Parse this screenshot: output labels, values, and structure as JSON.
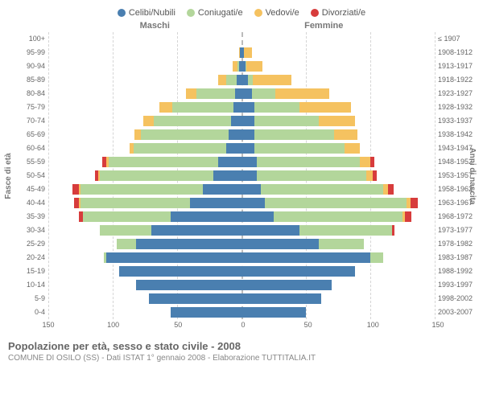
{
  "legend": [
    {
      "label": "Celibi/Nubili",
      "color": "#4a7fb0"
    },
    {
      "label": "Coniugati/e",
      "color": "#b3d69b"
    },
    {
      "label": "Vedovi/e",
      "color": "#f5c260"
    },
    {
      "label": "Divorziati/e",
      "color": "#d73c3c"
    }
  ],
  "side_titles": {
    "left": "Maschi",
    "right": "Femmine"
  },
  "y_left_label": "Fasce di età",
  "y_right_label": "Anni di nascita",
  "x_ticks": [
    150,
    100,
    50,
    0,
    50,
    100,
    150
  ],
  "x_max": 150,
  "footer_title": "Popolazione per età, sesso e stato civile - 2008",
  "footer_sub": "COMUNE DI OSILO (SS) - Dati ISTAT 1° gennaio 2008 - Elaborazione TUTTITALIA.IT",
  "colors": {
    "single": "#4a7fb0",
    "married": "#b3d69b",
    "widowed": "#f5c260",
    "divorced": "#d73c3c",
    "grid": "#d5d5d5",
    "center": "#bbb"
  },
  "rows": [
    {
      "age": "100+",
      "birth": "≤ 1907",
      "m": {
        "s": 0,
        "c": 0,
        "w": 0,
        "d": 0
      },
      "f": {
        "s": 0,
        "c": 0,
        "w": 0,
        "d": 0
      }
    },
    {
      "age": "95-99",
      "birth": "1908-1912",
      "m": {
        "s": 1,
        "c": 0,
        "w": 1,
        "d": 0
      },
      "f": {
        "s": 2,
        "c": 0,
        "w": 6,
        "d": 0
      }
    },
    {
      "age": "90-94",
      "birth": "1913-1917",
      "m": {
        "s": 2,
        "c": 1,
        "w": 4,
        "d": 0
      },
      "f": {
        "s": 3,
        "c": 1,
        "w": 12,
        "d": 0
      }
    },
    {
      "age": "85-89",
      "birth": "1918-1922",
      "m": {
        "s": 4,
        "c": 8,
        "w": 6,
        "d": 0
      },
      "f": {
        "s": 5,
        "c": 4,
        "w": 30,
        "d": 0
      }
    },
    {
      "age": "80-84",
      "birth": "1923-1927",
      "m": {
        "s": 5,
        "c": 30,
        "w": 8,
        "d": 0
      },
      "f": {
        "s": 8,
        "c": 18,
        "w": 42,
        "d": 0
      }
    },
    {
      "age": "75-79",
      "birth": "1928-1932",
      "m": {
        "s": 6,
        "c": 48,
        "w": 10,
        "d": 0
      },
      "f": {
        "s": 10,
        "c": 35,
        "w": 40,
        "d": 0
      }
    },
    {
      "age": "70-74",
      "birth": "1933-1937",
      "m": {
        "s": 8,
        "c": 60,
        "w": 8,
        "d": 0
      },
      "f": {
        "s": 10,
        "c": 50,
        "w": 28,
        "d": 0
      }
    },
    {
      "age": "65-69",
      "birth": "1938-1942",
      "m": {
        "s": 10,
        "c": 68,
        "w": 5,
        "d": 0
      },
      "f": {
        "s": 10,
        "c": 62,
        "w": 18,
        "d": 0
      }
    },
    {
      "age": "60-64",
      "birth": "1943-1947",
      "m": {
        "s": 12,
        "c": 72,
        "w": 3,
        "d": 0
      },
      "f": {
        "s": 10,
        "c": 70,
        "w": 12,
        "d": 0
      }
    },
    {
      "age": "55-59",
      "birth": "1948-1952",
      "m": {
        "s": 18,
        "c": 85,
        "w": 2,
        "d": 3
      },
      "f": {
        "s": 12,
        "c": 80,
        "w": 8,
        "d": 3
      }
    },
    {
      "age": "50-54",
      "birth": "1953-1957",
      "m": {
        "s": 22,
        "c": 88,
        "w": 1,
        "d": 3
      },
      "f": {
        "s": 12,
        "c": 85,
        "w": 5,
        "d": 3
      }
    },
    {
      "age": "45-49",
      "birth": "1958-1962",
      "m": {
        "s": 30,
        "c": 95,
        "w": 1,
        "d": 5
      },
      "f": {
        "s": 15,
        "c": 95,
        "w": 4,
        "d": 4
      }
    },
    {
      "age": "40-44",
      "birth": "1963-1967",
      "m": {
        "s": 40,
        "c": 85,
        "w": 1,
        "d": 4
      },
      "f": {
        "s": 18,
        "c": 110,
        "w": 3,
        "d": 6
      }
    },
    {
      "age": "35-39",
      "birth": "1968-1972",
      "m": {
        "s": 55,
        "c": 68,
        "w": 0,
        "d": 3
      },
      "f": {
        "s": 25,
        "c": 100,
        "w": 2,
        "d": 5
      }
    },
    {
      "age": "30-34",
      "birth": "1973-1977",
      "m": {
        "s": 70,
        "c": 40,
        "w": 0,
        "d": 0
      },
      "f": {
        "s": 45,
        "c": 72,
        "w": 0,
        "d": 2
      }
    },
    {
      "age": "25-29",
      "birth": "1978-1982",
      "m": {
        "s": 82,
        "c": 15,
        "w": 0,
        "d": 0
      },
      "f": {
        "s": 60,
        "c": 35,
        "w": 0,
        "d": 0
      }
    },
    {
      "age": "20-24",
      "birth": "1983-1987",
      "m": {
        "s": 105,
        "c": 2,
        "w": 0,
        "d": 0
      },
      "f": {
        "s": 100,
        "c": 10,
        "w": 0,
        "d": 0
      }
    },
    {
      "age": "15-19",
      "birth": "1988-1992",
      "m": {
        "s": 95,
        "c": 0,
        "w": 0,
        "d": 0
      },
      "f": {
        "s": 88,
        "c": 0,
        "w": 0,
        "d": 0
      }
    },
    {
      "age": "10-14",
      "birth": "1993-1997",
      "m": {
        "s": 82,
        "c": 0,
        "w": 0,
        "d": 0
      },
      "f": {
        "s": 70,
        "c": 0,
        "w": 0,
        "d": 0
      }
    },
    {
      "age": "5-9",
      "birth": "1998-2002",
      "m": {
        "s": 72,
        "c": 0,
        "w": 0,
        "d": 0
      },
      "f": {
        "s": 62,
        "c": 0,
        "w": 0,
        "d": 0
      }
    },
    {
      "age": "0-4",
      "birth": "2003-2007",
      "m": {
        "s": 55,
        "c": 0,
        "w": 0,
        "d": 0
      },
      "f": {
        "s": 50,
        "c": 0,
        "w": 0,
        "d": 0
      }
    }
  ]
}
